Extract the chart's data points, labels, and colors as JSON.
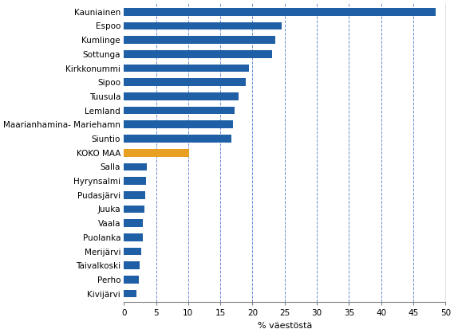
{
  "categories": [
    "Kivijärvi",
    "Perho",
    "Taivalkoski",
    "Merijärvi",
    "Puolanka",
    "Vaala",
    "Juuka",
    "Pudasjärvi",
    "Hyrynsalmi",
    "Salla",
    "KOKO MAA",
    "Siuntio",
    "Maarianhamina- Mariehamn",
    "Lemland",
    "Tuusula",
    "Sipoo",
    "Kirkkonummi",
    "Sottunga",
    "Kumlinge",
    "Espoo",
    "Kauniainen"
  ],
  "values": [
    2.0,
    2.3,
    2.5,
    2.7,
    2.9,
    3.0,
    3.2,
    3.3,
    3.4,
    3.6,
    10.2,
    16.7,
    17.0,
    17.2,
    17.8,
    19.0,
    19.5,
    23.0,
    23.5,
    24.5,
    48.5
  ],
  "bar_colors": [
    "#1F5FA6",
    "#1F5FA6",
    "#1F5FA6",
    "#1F5FA6",
    "#1F5FA6",
    "#1F5FA6",
    "#1F5FA6",
    "#1F5FA6",
    "#1F5FA6",
    "#1F5FA6",
    "#E8A020",
    "#1F5FA6",
    "#1F5FA6",
    "#1F5FA6",
    "#1F5FA6",
    "#1F5FA6",
    "#1F5FA6",
    "#1F5FA6",
    "#1F5FA6",
    "#1F5FA6",
    "#1F5FA6"
  ],
  "xlabel": "% väestöstä",
  "xlim": [
    0,
    50
  ],
  "xticks": [
    0,
    5,
    10,
    15,
    20,
    25,
    30,
    35,
    40,
    45,
    50
  ],
  "grid_color": "#4472C4",
  "background_color": "#FFFFFF",
  "bar_height": 0.55,
  "xlabel_fontsize": 8,
  "tick_fontsize": 7.5,
  "label_fontsize": 7.5,
  "figsize": [
    5.69,
    4.18
  ],
  "dpi": 100
}
